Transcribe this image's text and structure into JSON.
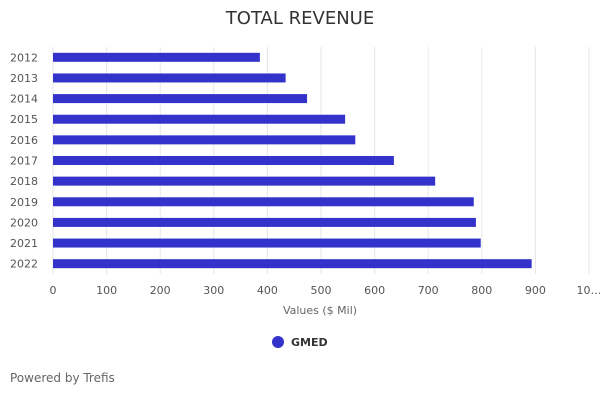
{
  "chart_data": {
    "type": "bar",
    "orientation": "horizontal",
    "title": "TOTAL REVENUE",
    "categories": [
      "2012",
      "2013",
      "2014",
      "2015",
      "2016",
      "2017",
      "2018",
      "2019",
      "2020",
      "2021",
      "2022"
    ],
    "series": [
      {
        "name": "GMED",
        "color": "#3333cc",
        "values": [
          386,
          434,
          474,
          545,
          564,
          636,
          713,
          785,
          789,
          798,
          893
        ]
      }
    ],
    "xlabel": "Values ($ Mil)",
    "xlim": [
      0,
      1000
    ],
    "x_ticks": [
      "0",
      "100",
      "200",
      "300",
      "400",
      "500",
      "600",
      "700",
      "800",
      "900",
      "10…"
    ],
    "grid": true,
    "legend_position": "bottom-center"
  },
  "footer": {
    "credit": "Powered by Trefis"
  }
}
